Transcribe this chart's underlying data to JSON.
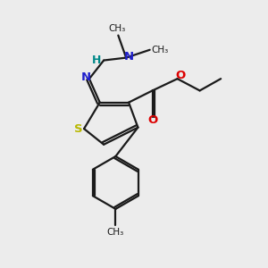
{
  "bg_color": "#ececec",
  "bond_color": "#1a1a1a",
  "S_color": "#b8b800",
  "N_color": "#2020cc",
  "O_color": "#dd0000",
  "H_color": "#008888",
  "lw": 1.6,
  "figsize": [
    3.0,
    3.0
  ],
  "dpi": 100,
  "xlim": [
    0,
    10
  ],
  "ylim": [
    0,
    10
  ]
}
